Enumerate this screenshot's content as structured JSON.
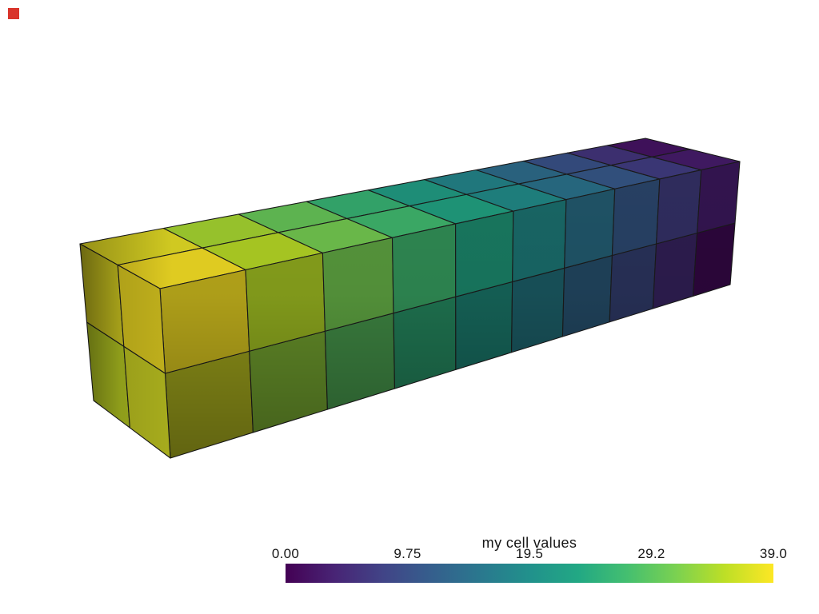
{
  "view": {
    "background": "#ffffff"
  },
  "marker": {
    "color": "#d9342b"
  },
  "chart_data": {
    "type": "3d-hexahedron-beam-mesh",
    "title": "my cell values",
    "colormap": "viridis",
    "clim": [
      0,
      39
    ],
    "colorbar_tick_labels": [
      "0.00",
      "9.75",
      "19.5",
      "29.2",
      "39.0"
    ],
    "grid_cells": {
      "along_length": 10,
      "vertical": 2,
      "depth": 2,
      "total": 40
    },
    "cell_values": [
      0,
      1,
      2,
      3,
      4,
      5,
      6,
      7,
      8,
      9,
      10,
      11,
      12,
      13,
      14,
      15,
      16,
      17,
      18,
      19,
      20,
      21,
      22,
      23,
      24,
      25,
      26,
      27,
      28,
      29,
      30,
      31,
      32,
      33,
      34,
      35,
      36,
      37,
      38,
      39
    ],
    "value_layout": "value = 4*(9-l) + 2*v + d ; l=0 at left end, v=1 top row, d=1 front row",
    "colormap_stops": [
      "#440154",
      "#482475",
      "#414487",
      "#355f8d",
      "#2a788e",
      "#21918c",
      "#22a884",
      "#44bf70",
      "#7ad151",
      "#bddf26",
      "#fde725"
    ],
    "edge_color": "#1a1a1a",
    "label_color": "#161616"
  }
}
